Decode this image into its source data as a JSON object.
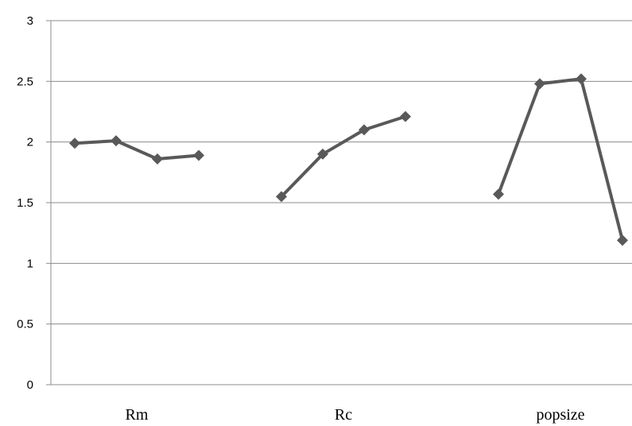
{
  "chart_data": {
    "type": "line",
    "title": "",
    "xlabel": "",
    "ylabel": "",
    "ylim": [
      0,
      3
    ],
    "yticks": [
      "0",
      "0.5",
      "1",
      "1.5",
      "2",
      "2.5",
      "3"
    ],
    "grid": true,
    "legend": "none",
    "line_color": "#595959",
    "groups": [
      {
        "label": "Rm",
        "values": [
          1.99,
          2.01,
          1.86,
          1.89
        ]
      },
      {
        "label": "Rc",
        "values": [
          1.55,
          1.9,
          2.1,
          2.21
        ]
      },
      {
        "label": "popsize",
        "values": [
          1.57,
          2.48,
          2.52,
          1.19
        ]
      }
    ]
  }
}
